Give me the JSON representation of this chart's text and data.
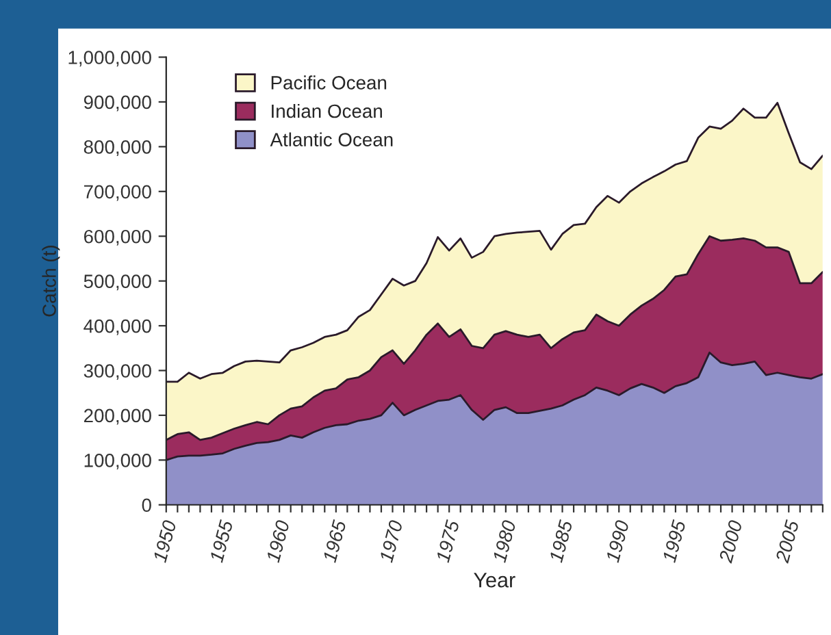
{
  "chart_data": {
    "type": "area",
    "stacked": true,
    "xlabel": "Year",
    "ylabel": "Catch (t)",
    "x": [
      1950,
      1951,
      1952,
      1953,
      1954,
      1955,
      1956,
      1957,
      1958,
      1959,
      1960,
      1961,
      1962,
      1963,
      1964,
      1965,
      1966,
      1967,
      1968,
      1969,
      1970,
      1971,
      1972,
      1973,
      1974,
      1975,
      1976,
      1977,
      1978,
      1979,
      1980,
      1981,
      1982,
      1983,
      1984,
      1985,
      1986,
      1987,
      1988,
      1989,
      1990,
      1991,
      1992,
      1993,
      1994,
      1995,
      1996,
      1997,
      1998,
      1999,
      2000,
      2001,
      2002,
      2003,
      2004,
      2005,
      2006,
      2007,
      2008
    ],
    "series": [
      {
        "name": "Atlantic Ocean",
        "color": "#9090c8",
        "values": [
          100000,
          108000,
          110000,
          110000,
          112000,
          115000,
          125000,
          132000,
          138000,
          140000,
          145000,
          155000,
          150000,
          162000,
          172000,
          178000,
          180000,
          188000,
          192000,
          200000,
          228000,
          200000,
          212000,
          222000,
          232000,
          235000,
          245000,
          212000,
          190000,
          212000,
          218000,
          205000,
          205000,
          210000,
          215000,
          222000,
          235000,
          245000,
          262000,
          255000,
          245000,
          260000,
          270000,
          262000,
          250000,
          265000,
          272000,
          285000,
          340000,
          318000,
          312000,
          315000,
          320000,
          290000,
          295000,
          290000,
          285000,
          282000,
          292000
        ]
      },
      {
        "name": "Indian Ocean",
        "color": "#9b2c5e",
        "values": [
          45000,
          50000,
          52000,
          35000,
          38000,
          45000,
          45000,
          46000,
          47000,
          40000,
          55000,
          60000,
          70000,
          78000,
          83000,
          82000,
          100000,
          97000,
          108000,
          130000,
          117000,
          115000,
          133000,
          158000,
          173000,
          140000,
          147000,
          143000,
          160000,
          168000,
          170000,
          175000,
          170000,
          170000,
          135000,
          148000,
          150000,
          145000,
          163000,
          155000,
          155000,
          165000,
          175000,
          198000,
          230000,
          245000,
          243000,
          275000,
          260000,
          272000,
          280000,
          280000,
          270000,
          285000,
          280000,
          275000,
          210000,
          213000,
          228000
        ]
      },
      {
        "name": "Pacific Ocean",
        "color": "#fbf6c8",
        "values": [
          130000,
          117000,
          133000,
          137000,
          142000,
          135000,
          140000,
          142000,
          137000,
          140000,
          118000,
          130000,
          132000,
          122000,
          120000,
          120000,
          110000,
          135000,
          135000,
          140000,
          160000,
          175000,
          155000,
          160000,
          193000,
          193000,
          203000,
          197000,
          215000,
          220000,
          217000,
          228000,
          235000,
          232000,
          220000,
          235000,
          240000,
          238000,
          240000,
          280000,
          275000,
          275000,
          273000,
          272000,
          265000,
          250000,
          253000,
          260000,
          245000,
          250000,
          266000,
          290000,
          275000,
          290000,
          323000,
          265000,
          270000,
          255000,
          260000
        ]
      }
    ],
    "xlim": [
      1950,
      2008
    ],
    "xticks": [
      1950,
      {
        "value": 1951,
        "label": null
      },
      {
        "value": 1952,
        "label": null
      },
      {
        "value": 1953,
        "label": null
      },
      {
        "value": 1954,
        "label": null
      },
      1955,
      {
        "value": 1956,
        "label": null
      },
      {
        "value": 1957,
        "label": null
      },
      {
        "value": 1958,
        "label": null
      },
      {
        "value": 1959,
        "label": null
      },
      1960,
      {
        "value": 1961,
        "label": null
      },
      {
        "value": 1962,
        "label": null
      },
      {
        "value": 1963,
        "label": null
      },
      {
        "value": 1964,
        "label": null
      },
      1965,
      {
        "value": 1966,
        "label": null
      },
      {
        "value": 1967,
        "label": null
      },
      {
        "value": 1968,
        "label": null
      },
      {
        "value": 1969,
        "label": null
      },
      1970,
      {
        "value": 1971,
        "label": null
      },
      {
        "value": 1972,
        "label": null
      },
      {
        "value": 1973,
        "label": null
      },
      {
        "value": 1974,
        "label": null
      },
      1975,
      {
        "value": 1976,
        "label": null
      },
      {
        "value": 1977,
        "label": null
      },
      {
        "value": 1978,
        "label": null
      },
      {
        "value": 1979,
        "label": null
      },
      1980,
      {
        "value": 1981,
        "label": null
      },
      {
        "value": 1982,
        "label": null
      },
      {
        "value": 1983,
        "label": null
      },
      {
        "value": 1984,
        "label": null
      },
      1985,
      {
        "value": 1986,
        "label": null
      },
      {
        "value": 1987,
        "label": null
      },
      {
        "value": 1988,
        "label": null
      },
      {
        "value": 1989,
        "label": null
      },
      1990,
      {
        "value": 1991,
        "label": null
      },
      {
        "value": 1992,
        "label": null
      },
      {
        "value": 1993,
        "label": null
      },
      {
        "value": 1994,
        "label": null
      },
      1995,
      {
        "value": 1996,
        "label": null
      },
      {
        "value": 1997,
        "label": null
      },
      {
        "value": 1998,
        "label": null
      },
      {
        "value": 1999,
        "label": null
      },
      2000,
      {
        "value": 2001,
        "label": null
      },
      {
        "value": 2002,
        "label": null
      },
      {
        "value": 2003,
        "label": null
      },
      {
        "value": 2004,
        "label": null
      },
      2005,
      {
        "value": 2006,
        "label": null
      },
      {
        "value": 2007,
        "label": null
      },
      {
        "value": 2008,
        "label": null
      }
    ],
    "ylim": [
      0,
      1000000
    ],
    "yticks": [
      0,
      {
        "value": 100000,
        "label": "100,000"
      },
      {
        "value": 200000,
        "label": "200,000"
      },
      {
        "value": 300000,
        "label": "300,000"
      },
      {
        "value": 400000,
        "label": "400,000"
      },
      {
        "value": 500000,
        "label": "500,000"
      },
      {
        "value": 600000,
        "label": "600,000"
      },
      {
        "value": 700000,
        "label": "700,000"
      },
      {
        "value": 800000,
        "label": "800,000"
      },
      {
        "value": 900000,
        "label": "900,000"
      },
      {
        "value": 1000000,
        "label": "1,000,000"
      }
    ],
    "grid": false,
    "legend": "top left"
  }
}
